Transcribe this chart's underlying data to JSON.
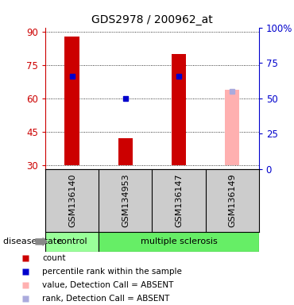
{
  "title": "GDS2978 / 200962_at",
  "samples": [
    "GSM136140",
    "GSM134953",
    "GSM136147",
    "GSM136149"
  ],
  "ylim_left": [
    28,
    92
  ],
  "ylim_right": [
    0,
    100
  ],
  "yticks_left": [
    30,
    45,
    60,
    75,
    90
  ],
  "yticks_right": [
    0,
    25,
    50,
    75,
    100
  ],
  "bar_values": [
    88,
    42,
    80,
    null
  ],
  "bar_color": "#cc0000",
  "absent_bar_values": [
    null,
    null,
    null,
    64
  ],
  "absent_bar_color": "#ffb0b0",
  "percentile_values": [
    70,
    60,
    70,
    null
  ],
  "percentile_color": "#0000cc",
  "absent_rank_values": [
    null,
    null,
    null,
    63
  ],
  "absent_rank_color": "#aaaadd",
  "control_color": "#99ff99",
  "ms_color": "#66ee66",
  "left_axis_color": "#cc0000",
  "right_axis_color": "#0000cc",
  "bg_color": "#ffffff",
  "bar_width": 0.28,
  "base_value": 30,
  "legend_items": [
    [
      "#cc0000",
      "count"
    ],
    [
      "#0000cc",
      "percentile rank within the sample"
    ],
    [
      "#ffb0b0",
      "value, Detection Call = ABSENT"
    ],
    [
      "#aaaadd",
      "rank, Detection Call = ABSENT"
    ]
  ]
}
